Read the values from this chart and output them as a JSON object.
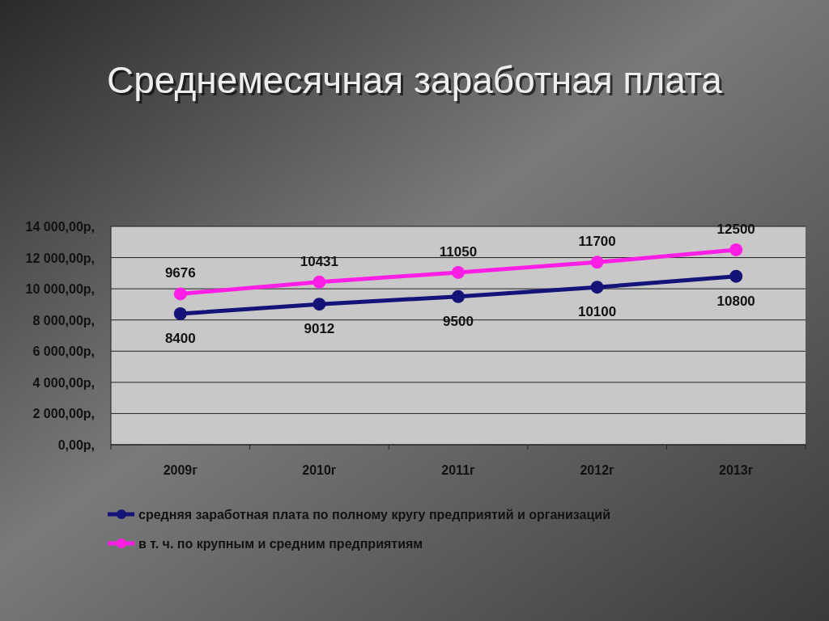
{
  "chart_data": {
    "type": "line",
    "title": "Среднемесячная заработная плата",
    "categories": [
      "2009г",
      "2010г",
      "2011г",
      "2012г",
      "2013г"
    ],
    "series": [
      {
        "name": "средняя заработная плата по полному кругу предприятий и организаций",
        "color": "#141478",
        "values": [
          8400,
          9012,
          9500,
          10100,
          10800
        ]
      },
      {
        "name": "в т. ч. по крупным и средним предприятиям",
        "color": "#ff1ee6",
        "values": [
          9676,
          10431,
          11050,
          11700,
          12500
        ]
      }
    ],
    "ylim": [
      0,
      14000
    ],
    "yticks": [
      {
        "value": 0,
        "label": "0,00р,"
      },
      {
        "value": 2000,
        "label": "2 000,00р,"
      },
      {
        "value": 4000,
        "label": "4 000,00р,"
      },
      {
        "value": 6000,
        "label": "6 000,00р,"
      },
      {
        "value": 8000,
        "label": "8 000,00р,"
      },
      {
        "value": 10000,
        "label": "10 000,00р,"
      },
      {
        "value": 12000,
        "label": "12 000,00р,"
      },
      {
        "value": 14000,
        "label": "14 000,00р,"
      }
    ],
    "grid": "y",
    "legend": "bottom",
    "marker": "circle",
    "line_style": "solid",
    "data_labels": true
  }
}
